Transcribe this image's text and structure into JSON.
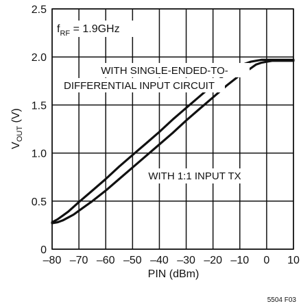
{
  "chart_data": {
    "type": "line",
    "xlabel": "PIN (dBm)",
    "ylabel": "VOUT (V)",
    "ylabel_main": "V",
    "ylabel_sub": "OUT",
    "ylabel_unit": " (V)",
    "xlim": [
      -80,
      10
    ],
    "ylim": [
      0,
      2.5
    ],
    "xticks": [
      -80,
      -70,
      -60,
      -50,
      -40,
      -30,
      -20,
      -10,
      0,
      10
    ],
    "xtick_labels": [
      "–80",
      "–70",
      "–60",
      "–50",
      "–40",
      "–30",
      "–20",
      "–10",
      "0",
      "10"
    ],
    "yticks": [
      0,
      0.5,
      1.0,
      1.5,
      2.0,
      2.5
    ],
    "ytick_labels": [
      "0",
      "0.5",
      "1.0",
      "1.5",
      "2.0",
      "2.5"
    ],
    "grid": true,
    "annotations": {
      "frequency_main": "f",
      "frequency_sub": "RF",
      "frequency_value": " = 1.9GHz",
      "upper_label_line1": "WITH SINGLE-ENDED-TO-",
      "upper_label_line2": "DIFFERENTIAL INPUT CIRCUIT",
      "lower_label": "WITH 1:1 INPUT TX",
      "figure_id": "5504 F03"
    },
    "series": [
      {
        "label": "WITH SINGLE-ENDED-TO-DIFFERENTIAL INPUT CIRCUIT",
        "x": [
          -80,
          -78,
          -76,
          -74,
          -72,
          -70,
          -65,
          -60,
          -55,
          -50,
          -45,
          -40,
          -35,
          -30,
          -25,
          -20,
          -15,
          -10,
          -6,
          -4,
          -2,
          0,
          2,
          5,
          10
        ],
        "y": [
          0.28,
          0.31,
          0.35,
          0.39,
          0.44,
          0.49,
          0.61,
          0.73,
          0.86,
          0.98,
          1.1,
          1.22,
          1.35,
          1.47,
          1.59,
          1.71,
          1.83,
          1.91,
          1.95,
          1.96,
          1.97,
          1.97,
          1.97,
          1.97,
          1.97
        ]
      },
      {
        "label": "WITH 1:1 INPUT TX",
        "x": [
          -80,
          -78,
          -76,
          -74,
          -72,
          -70,
          -65,
          -60,
          -55,
          -50,
          -45,
          -40,
          -35,
          -30,
          -25,
          -20,
          -15,
          -10,
          -6,
          -4,
          -2,
          0,
          2,
          5,
          10
        ],
        "y": [
          0.27,
          0.28,
          0.3,
          0.33,
          0.36,
          0.4,
          0.5,
          0.61,
          0.73,
          0.85,
          0.97,
          1.09,
          1.21,
          1.34,
          1.46,
          1.58,
          1.7,
          1.81,
          1.88,
          1.92,
          1.94,
          1.95,
          1.96,
          1.96,
          1.96
        ]
      }
    ]
  }
}
